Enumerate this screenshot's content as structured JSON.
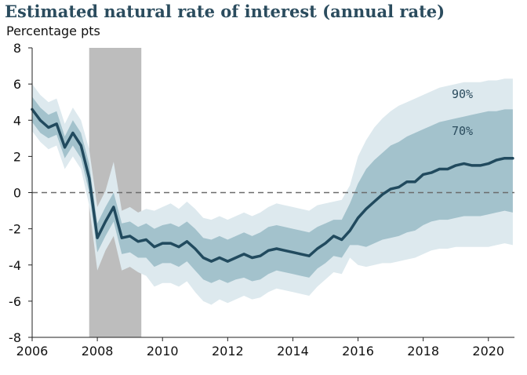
{
  "chart_data": {
    "type": "area",
    "title": "Estimated natural rate of interest (annual rate)",
    "ylabel": "Percentage pts",
    "xlabel": "",
    "xlim": [
      2006,
      2020.8
    ],
    "ylim": [
      -8,
      8
    ],
    "xticks": [
      2006,
      2008,
      2010,
      2012,
      2014,
      2016,
      2018,
      2020
    ],
    "yticks": [
      -8,
      -6,
      -4,
      -2,
      0,
      2,
      4,
      6,
      8
    ],
    "grid": false,
    "zero_line": true,
    "recession_shading": [
      2007.75,
      2009.35
    ],
    "band_labels": [
      "90%",
      "70%"
    ],
    "colors": {
      "band_90": "#dde9ee",
      "band_70": "#a3c2cc",
      "line": "#214a5e",
      "recession": "#bdbdbd",
      "zero_line": "#6b6b6b"
    },
    "x": [
      2006,
      2006.25,
      2006.5,
      2006.75,
      2007,
      2007.25,
      2007.5,
      2007.75,
      2008,
      2008.25,
      2008.5,
      2008.75,
      2009,
      2009.25,
      2009.5,
      2009.75,
      2010,
      2010.25,
      2010.5,
      2010.75,
      2011,
      2011.25,
      2011.5,
      2011.75,
      2012,
      2012.25,
      2012.5,
      2012.75,
      2013,
      2013.25,
      2013.5,
      2013.75,
      2014,
      2014.25,
      2014.5,
      2014.75,
      2015,
      2015.25,
      2015.5,
      2015.75,
      2016,
      2016.25,
      2016.5,
      2016.75,
      2017,
      2017.25,
      2017.5,
      2017.75,
      2018,
      2018.25,
      2018.5,
      2018.75,
      2019,
      2019.25,
      2019.5,
      2019.75,
      2020,
      2020.25,
      2020.5,
      2020.75
    ],
    "series": [
      {
        "values": [
          4.6,
          4.0,
          3.6,
          3.8,
          2.5,
          3.3,
          2.6,
          0.8,
          -2.5,
          -1.6,
          -0.8,
          -2.5,
          -2.4,
          -2.7,
          -2.6,
          -3.0,
          -2.8,
          -2.8,
          -3.0,
          -2.7,
          -3.1,
          -3.6,
          -3.8,
          -3.6,
          -3.8,
          -3.6,
          -3.4,
          -3.6,
          -3.5,
          -3.2,
          -3.1,
          -3.2,
          -3.3,
          -3.4,
          -3.5,
          -3.1,
          -2.8,
          -2.4,
          -2.6,
          -2.1,
          -1.4,
          -0.9,
          -0.5,
          -0.1,
          0.2,
          0.3,
          0.6,
          0.6,
          1.0,
          1.1,
          1.3,
          1.3,
          1.5,
          1.6,
          1.5,
          1.5,
          1.6,
          1.8,
          1.9,
          1.9
        ],
        "ci70": {
          "lower": [
            3.9,
            3.3,
            3.0,
            3.2,
            1.9,
            2.6,
            1.9,
            0.0,
            -3.3,
            -2.4,
            -1.6,
            -3.4,
            -3.3,
            -3.6,
            -3.6,
            -4.1,
            -3.9,
            -3.9,
            -4.1,
            -3.8,
            -4.3,
            -4.8,
            -5.0,
            -4.8,
            -5.0,
            -4.8,
            -4.7,
            -4.9,
            -4.8,
            -4.5,
            -4.3,
            -4.4,
            -4.5,
            -4.6,
            -4.7,
            -4.2,
            -3.9,
            -3.5,
            -3.6,
            -2.9,
            -2.9,
            -3.0,
            -2.8,
            -2.6,
            -2.5,
            -2.4,
            -2.2,
            -2.1,
            -1.8,
            -1.6,
            -1.5,
            -1.5,
            -1.4,
            -1.3,
            -1.3,
            -1.3,
            -1.2,
            -1.1,
            -1.0,
            -1.1
          ],
          "upper": [
            5.3,
            4.7,
            4.3,
            4.5,
            3.1,
            4.0,
            3.3,
            1.6,
            -1.7,
            -0.8,
            0.0,
            -1.7,
            -1.6,
            -1.9,
            -1.7,
            -2.0,
            -1.8,
            -1.7,
            -1.9,
            -1.6,
            -2.0,
            -2.5,
            -2.6,
            -2.4,
            -2.6,
            -2.4,
            -2.2,
            -2.4,
            -2.2,
            -1.9,
            -1.8,
            -1.9,
            -2.0,
            -2.1,
            -2.2,
            -1.9,
            -1.7,
            -1.5,
            -1.5,
            -0.6,
            0.5,
            1.3,
            1.8,
            2.2,
            2.6,
            2.8,
            3.1,
            3.3,
            3.5,
            3.7,
            3.9,
            4.0,
            4.1,
            4.2,
            4.3,
            4.4,
            4.5,
            4.5,
            4.6,
            4.6
          ]
        },
        "ci90": {
          "lower": [
            3.4,
            2.8,
            2.4,
            2.6,
            1.3,
            2.0,
            1.3,
            -0.7,
            -4.3,
            -3.2,
            -2.4,
            -4.3,
            -4.1,
            -4.4,
            -4.6,
            -5.2,
            -5.0,
            -5.0,
            -5.2,
            -4.9,
            -5.5,
            -6.0,
            -6.2,
            -5.9,
            -6.1,
            -5.9,
            -5.7,
            -5.9,
            -5.8,
            -5.5,
            -5.3,
            -5.4,
            -5.5,
            -5.6,
            -5.7,
            -5.2,
            -4.8,
            -4.4,
            -4.5,
            -3.6,
            -4.0,
            -4.1,
            -4.0,
            -3.9,
            -3.9,
            -3.8,
            -3.7,
            -3.6,
            -3.4,
            -3.2,
            -3.1,
            -3.1,
            -3.0,
            -3.0,
            -3.0,
            -3.0,
            -3.0,
            -2.9,
            -2.8,
            -2.9
          ],
          "upper": [
            6.0,
            5.4,
            5.0,
            5.2,
            3.8,
            4.7,
            4.0,
            2.4,
            -0.8,
            0.1,
            1.7,
            -1.0,
            -0.8,
            -1.1,
            -0.9,
            -1.0,
            -0.8,
            -0.6,
            -0.9,
            -0.5,
            -0.9,
            -1.4,
            -1.5,
            -1.3,
            -1.5,
            -1.3,
            -1.1,
            -1.3,
            -1.1,
            -0.8,
            -0.6,
            -0.7,
            -0.8,
            -0.9,
            -1.0,
            -0.7,
            -0.6,
            -0.5,
            -0.4,
            0.4,
            2.0,
            2.9,
            3.6,
            4.1,
            4.5,
            4.8,
            5.0,
            5.2,
            5.4,
            5.6,
            5.8,
            5.9,
            6.0,
            6.1,
            6.1,
            6.1,
            6.2,
            6.2,
            6.3,
            6.3
          ]
        }
      }
    ]
  }
}
